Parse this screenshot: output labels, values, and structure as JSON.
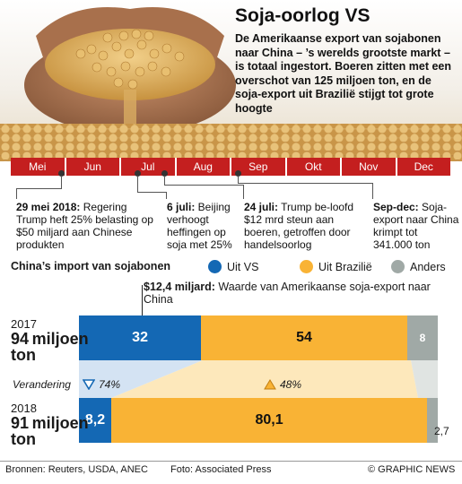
{
  "header": {
    "title": "Soja-oorlog VS",
    "subtitle": "De Amerikaanse export van sojabonen naar China – ’s werelds grootste markt – is totaal ingestort. Boeren zitten met een overschot van 125 miljoen ton, en de soja-export uit Brazilië stijgt tot grote hoogte"
  },
  "timeline": {
    "months": [
      "Mei",
      "Jun",
      "Jul",
      "Aug",
      "Sep",
      "Okt",
      "Nov",
      "Dec"
    ]
  },
  "events": [
    {
      "date": "29 mei 2018:",
      "text": " Regering Trump heft 25% belasting op $50 miljard aan Chinese produkten"
    },
    {
      "date": "6 juli:",
      "text": " Beijing verhoogt heffingen op soja met 25%"
    },
    {
      "date": "24 juli:",
      "text": " Trump be-loofd $12 mrd steun aan boeren, getroffen door handelsoorlog"
    },
    {
      "date": "Sep-dec:",
      "text": " Soja-export naar China krimpt tot 341.000 ton"
    }
  ],
  "legend": {
    "title": "China’s import van sojabonen",
    "items": [
      {
        "label": "Uit VS",
        "color": "#1468b4"
      },
      {
        "label": "Uit Brazilië",
        "color": "#f9b335"
      },
      {
        "label": "Anders",
        "color": "#a0a9a6"
      }
    ]
  },
  "export_note": {
    "bold": "$12,4 miljard:",
    "text": " Waarde van Amerikaanse soja-export naar China"
  },
  "rows": [
    {
      "year": "2017",
      "total": "94",
      "unit_a": "miljoen",
      "unit_b": "ton",
      "values": [
        32,
        54,
        8
      ],
      "labels": [
        "32",
        "54",
        "8"
      ]
    },
    {
      "year": "2018",
      "total": "91",
      "unit_a": "miljoen",
      "unit_b": "ton",
      "values": [
        8.2,
        80.1,
        2.7
      ],
      "labels": [
        "8,2",
        "80,1",
        "2,7"
      ]
    }
  ],
  "change": {
    "label": "Verandering",
    "vs": "74%",
    "br": "48%"
  },
  "footer": {
    "sources": "Bronnen: Reuters, USDA, ANEC",
    "photo": "Foto: Associated Press",
    "credit": "© GRAPHIC NEWS"
  }
}
